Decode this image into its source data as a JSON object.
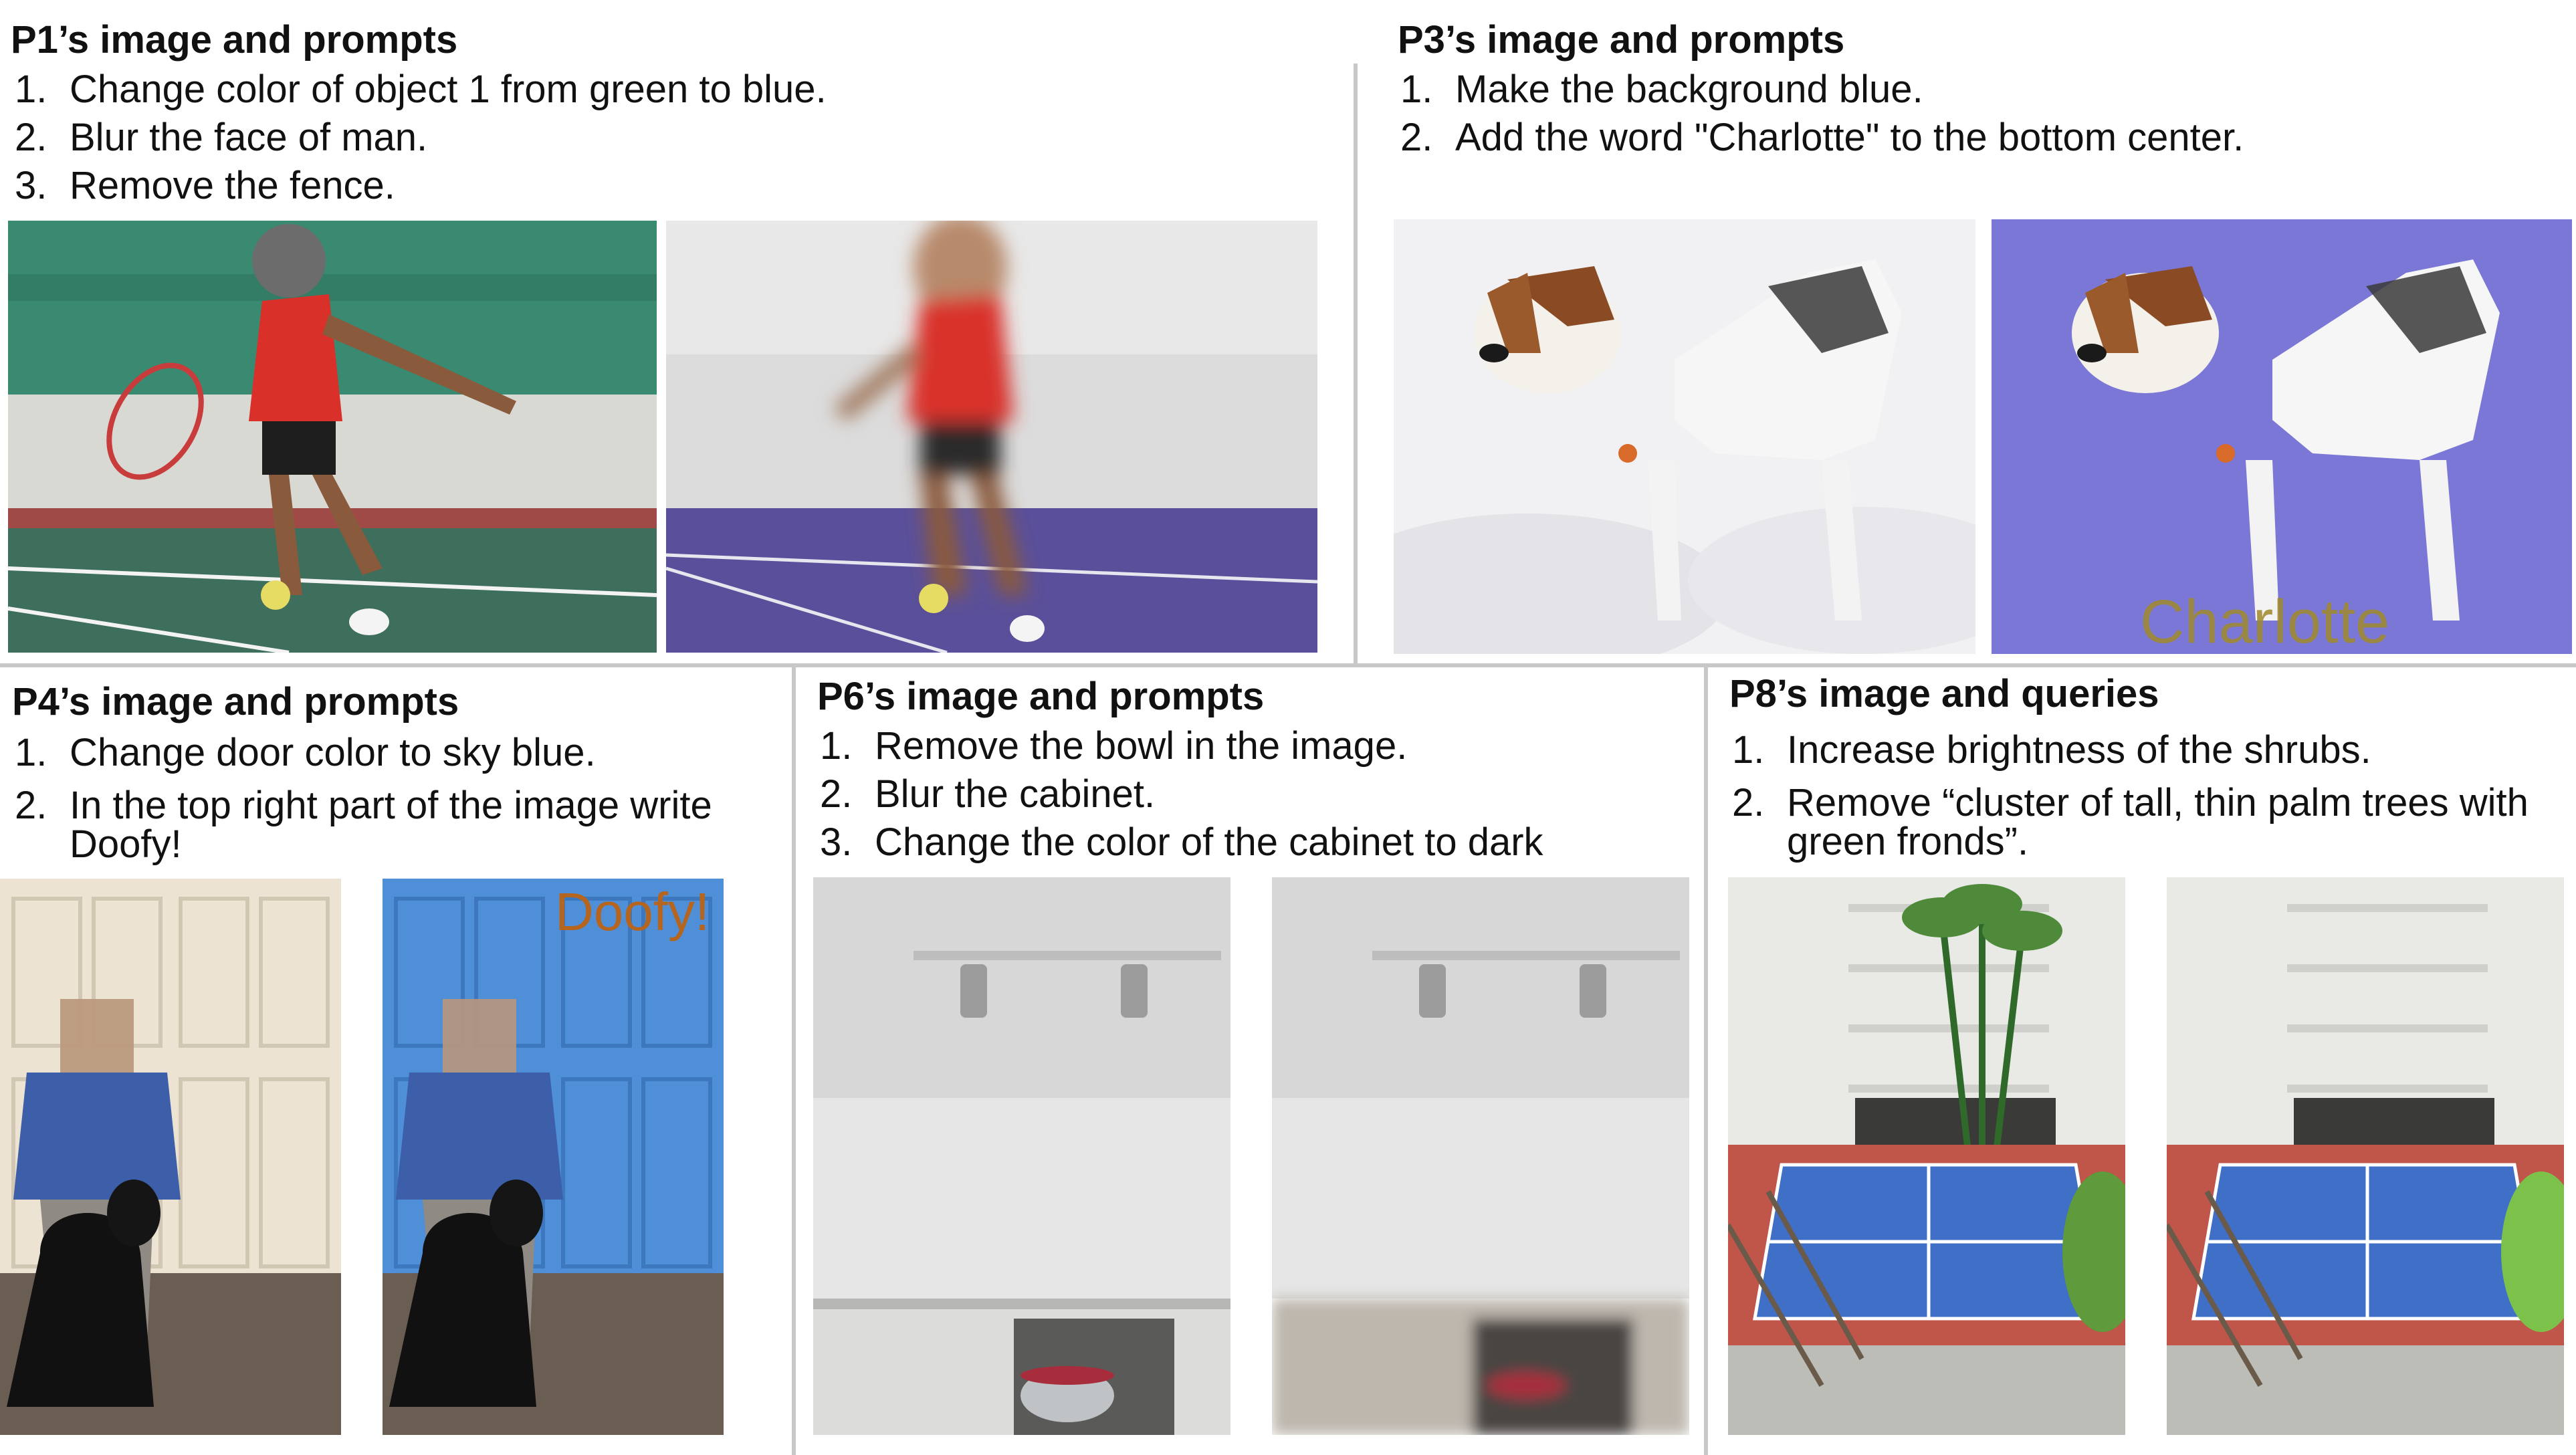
{
  "panels": {
    "p1": {
      "title": "P1’s image and prompts",
      "prompts": [
        {
          "num": "1.",
          "text": "Change color of object 1 from green to blue."
        },
        {
          "num": "2.",
          "text": "Blur the face of man."
        },
        {
          "num": "3.",
          "text": "Remove the fence."
        }
      ]
    },
    "p3": {
      "title": "P3’s image and prompts",
      "prompts": [
        {
          "num": "1.",
          "text": "Make the background blue."
        },
        {
          "num": "2.",
          "text": "Add the word \"Charlotte\" to the bottom center."
        }
      ],
      "overlay_text": "Charlotte"
    },
    "p4": {
      "title": "P4’s image and prompts",
      "prompts": [
        {
          "num": "1.",
          "text": "Change door color to sky blue."
        },
        {
          "num": "2.",
          "text": "In the top right part of the image write Doofy!"
        }
      ],
      "overlay_text": "Doofy!"
    },
    "p6": {
      "title": "P6’s image and prompts",
      "prompts": [
        {
          "num": "1.",
          "text": "Remove the bowl in the image."
        },
        {
          "num": "2.",
          "text": "Blur the cabinet."
        },
        {
          "num": "3.",
          "text": "Change the color of the cabinet to dark"
        }
      ]
    },
    "p8": {
      "title": "P8’s image and queries",
      "prompts": [
        {
          "num": "1.",
          "text": "Increase brightness of the shrubs."
        },
        {
          "num": "2.",
          "text": "Remove “cluster of tall, thin palm trees with green fronds”."
        }
      ]
    }
  },
  "colors": {
    "tennis_green_wall": "#3a8a72",
    "tennis_blue_court": "#5a4f9a",
    "snow": "#f1f1f3",
    "edit_blue_bg": "#7b77d6",
    "door_cream": "#ece3d2",
    "door_sky_blue": "#4f8fd8",
    "court_blue": "#3f6fc7",
    "court_red": "#c0554a",
    "overlay_text_gold": "#a08a2a",
    "overlay_text_orange": "#b5651d"
  }
}
